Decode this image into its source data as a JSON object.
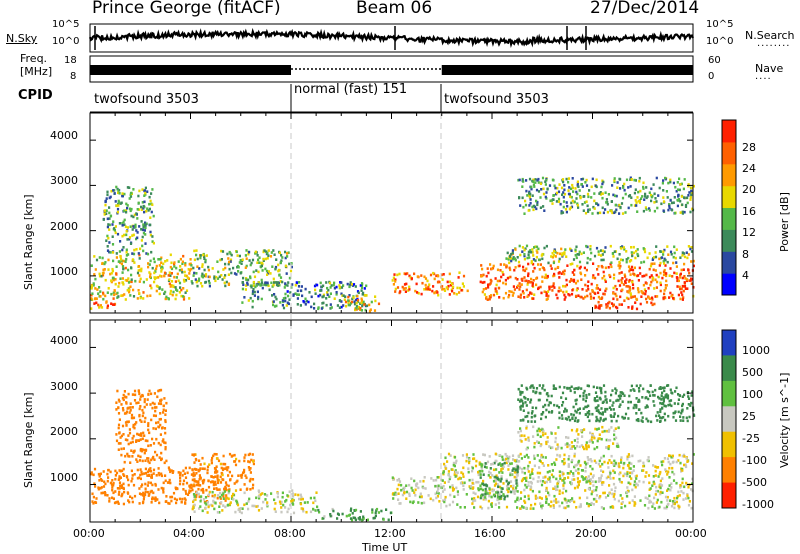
{
  "header": {
    "radar": "Prince George (fitACF)",
    "beam": "Beam 06",
    "date": "27/Dec/2014"
  },
  "noise_panel": {
    "left_label": "N.Sky",
    "left_ticks": [
      "10^5",
      "10^0"
    ],
    "right_label": "N.Search",
    "right_ticks": [
      "10^5",
      "10^0"
    ]
  },
  "freq_panel": {
    "left_label_1": "Freq.",
    "left_label_2": "[MHz]",
    "left_ticks": [
      "18",
      "8"
    ],
    "right_label": "Nave",
    "right_ticks": [
      "60",
      "0"
    ]
  },
  "cpid": {
    "label": "CPID",
    "segments": [
      {
        "name": "twofsound 3503",
        "start_h": 0,
        "end_h": 8
      },
      {
        "name": "normal (fast) 151",
        "start_h": 8,
        "end_h": 14
      },
      {
        "name": "twofsound 3503",
        "start_h": 14,
        "end_h": 24
      }
    ]
  },
  "axes": {
    "ylabel": "Slant Range [km]",
    "xlabel": "Time UT",
    "xticks": [
      "00:00",
      "04:00",
      "08:00",
      "12:00",
      "16:00",
      "20:00",
      "00:00"
    ],
    "yticks": [
      "1000",
      "2000",
      "3000",
      "4000"
    ],
    "ylim": [
      180,
      4600
    ],
    "xlim_hours": [
      0,
      24
    ]
  },
  "power_colorbar": {
    "label": "Power [dB]",
    "ticks": [
      "4",
      "8",
      "12",
      "16",
      "20",
      "24",
      "28"
    ],
    "colors": [
      "#0000ff",
      "#2a48a0",
      "#3c8a5a",
      "#54b848",
      "#e8d800",
      "#ff9a00",
      "#ff6000",
      "#ff2000"
    ]
  },
  "velocity_colorbar": {
    "label": "Velocity [m s^-1]",
    "ticks": [
      "1000",
      "500",
      "100",
      "25",
      "-25",
      "-100",
      "-500",
      "-1000"
    ],
    "colors": [
      "#2040c0",
      "#3a8a4a",
      "#60c040",
      "#c8c8c0",
      "#f0c000",
      "#ff8000",
      "#ff2000"
    ]
  },
  "chart_data": {
    "type": "heatmap",
    "title": "Prince George (fitACF) Beam 06 27/Dec/2014",
    "xlabel": "Time UT",
    "ylabel": "Slant Range [km]",
    "x_range_hours": [
      0,
      24
    ],
    "y_range_km": [
      180,
      4600
    ],
    "panels": [
      {
        "name": "Power [dB]",
        "scatter_regions": [
          {
            "t0": 0.0,
            "t1": 4.0,
            "r0": 500,
            "r1": 1500,
            "value": 18
          },
          {
            "t0": 0.5,
            "t1": 2.5,
            "r0": 1500,
            "r1": 3000,
            "value": 12
          },
          {
            "t0": 0.0,
            "t1": 1.0,
            "r0": 300,
            "r1": 600,
            "value": 24
          },
          {
            "t0": 4.0,
            "t1": 8.0,
            "r0": 800,
            "r1": 1600,
            "value": 14
          },
          {
            "t0": 6.0,
            "t1": 11.0,
            "r0": 300,
            "r1": 900,
            "value": 10
          },
          {
            "t0": 10.0,
            "t1": 11.5,
            "r0": 250,
            "r1": 600,
            "value": 20
          },
          {
            "t0": 12.0,
            "t1": 15.0,
            "r0": 600,
            "r1": 1100,
            "value": 24
          },
          {
            "t0": 15.5,
            "t1": 24.0,
            "r0": 500,
            "r1": 1300,
            "value": 26
          },
          {
            "t0": 16.5,
            "t1": 24.0,
            "r0": 1300,
            "r1": 1700,
            "value": 14
          },
          {
            "t0": 17.0,
            "t1": 24.0,
            "r0": 2400,
            "r1": 3200,
            "value": 12
          },
          {
            "t0": 20.0,
            "t1": 22.5,
            "r0": 300,
            "r1": 500,
            "value": 30
          }
        ]
      },
      {
        "name": "Velocity [m s^-1]",
        "scatter_regions": [
          {
            "t0": 0.0,
            "t1": 5.5,
            "r0": 600,
            "r1": 1400,
            "value": -200
          },
          {
            "t0": 1.0,
            "t1": 3.0,
            "r0": 1500,
            "r1": 3100,
            "value": -300
          },
          {
            "t0": 4.0,
            "t1": 6.5,
            "r0": 900,
            "r1": 1700,
            "value": -150
          },
          {
            "t0": 4.0,
            "t1": 9.0,
            "r0": 400,
            "r1": 900,
            "value": 0
          },
          {
            "t0": 9.0,
            "t1": 12.0,
            "r0": 250,
            "r1": 500,
            "value": 80
          },
          {
            "t0": 12.0,
            "t1": 14.0,
            "r0": 600,
            "r1": 1200,
            "value": 0
          },
          {
            "t0": 14.0,
            "t1": 24.0,
            "r0": 500,
            "r1": 1700,
            "value": 0
          },
          {
            "t0": 15.5,
            "t1": 17.0,
            "r0": 700,
            "r1": 1500,
            "value": 80
          },
          {
            "t0": 17.0,
            "t1": 24.0,
            "r0": 2400,
            "r1": 3200,
            "value": 200
          },
          {
            "t0": 17.0,
            "t1": 21.0,
            "r0": 1800,
            "r1": 2300,
            "value": 0
          }
        ]
      }
    ]
  }
}
